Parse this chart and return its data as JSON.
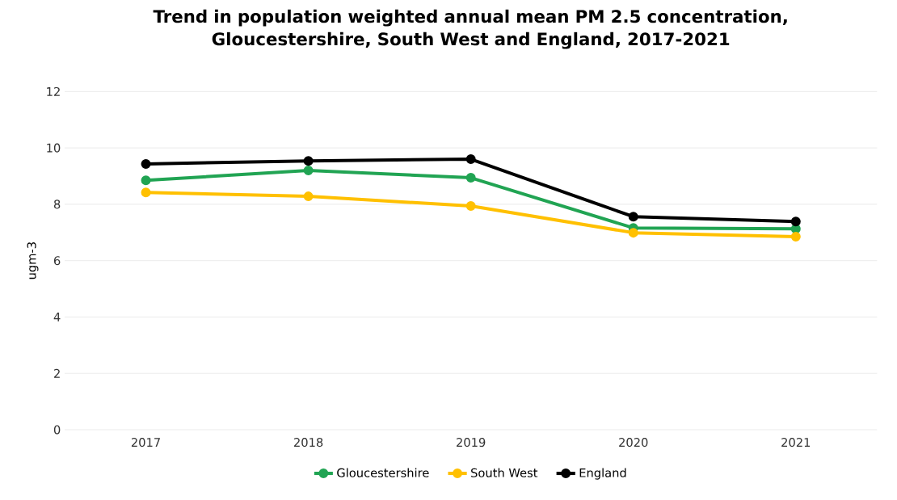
{
  "chart_data": {
    "type": "line",
    "title": "Trend in population weighted annual mean PM 2.5 concentration, Gloucestershire, South West and England, 2017-2021",
    "ylabel": "ugm-3",
    "categories": [
      "2017",
      "2018",
      "2019",
      "2020",
      "2021"
    ],
    "series": [
      {
        "name": "Gloucestershire",
        "color": "#21a453",
        "values": [
          8.85,
          9.2,
          8.94,
          7.16,
          7.13
        ]
      },
      {
        "name": "South West",
        "color": "#ffc000",
        "values": [
          8.42,
          8.28,
          7.94,
          6.99,
          6.85
        ]
      },
      {
        "name": "England",
        "color": "#000000",
        "values": [
          9.43,
          9.54,
          9.6,
          7.56,
          7.39
        ]
      }
    ],
    "ylim": [
      0,
      12
    ],
    "yticks": [
      0,
      2,
      4,
      6,
      8,
      10,
      12
    ],
    "grid": "y",
    "legend": "bottom",
    "marker": "circle",
    "line_style": "solid"
  }
}
